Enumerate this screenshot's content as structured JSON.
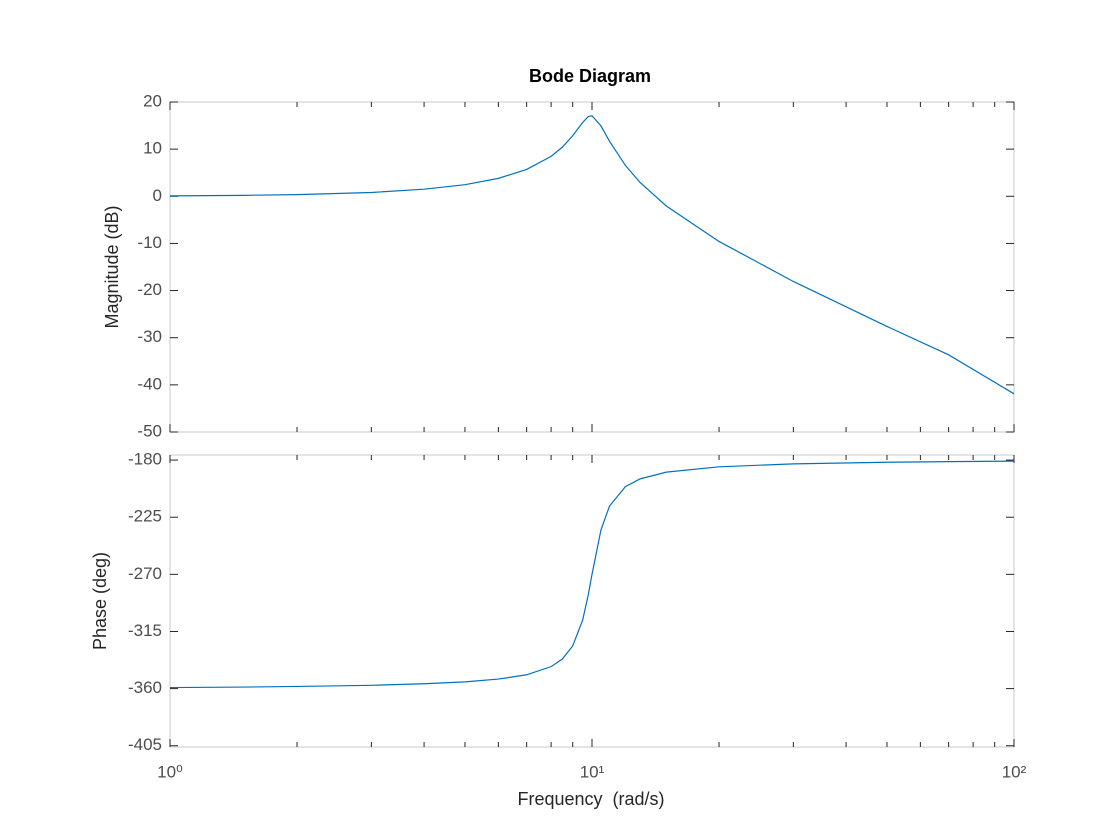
{
  "chart_data": [
    {
      "type": "line",
      "title": "Bode Diagram",
      "ylabel": "Magnitude (dB)",
      "xscale": "log",
      "x": [
        1,
        1.5,
        2,
        3,
        4,
        5,
        6,
        7,
        8,
        8.5,
        9,
        9.5,
        9.8,
        10,
        10.5,
        11,
        12,
        13,
        15,
        20,
        30,
        50,
        70,
        100
      ],
      "series": [
        {
          "name": "Magnitude",
          "color": "#0072bd",
          "values": [
            0.09,
            0.2,
            0.35,
            0.81,
            1.5,
            2.46,
            3.8,
            5.69,
            8.47,
            10.4,
            12.84,
            15.65,
            16.91,
            17.08,
            14.93,
            11.69,
            6.54,
            2.93,
            -2.06,
            -9.58,
            -18.07,
            -27.61,
            -33.63,
            -41.9
          ]
        }
      ],
      "xlim": [
        1,
        100
      ],
      "xticks": [
        1,
        10,
        100
      ],
      "xminorticks": [
        2,
        3,
        4,
        5,
        6,
        7,
        8,
        9,
        20,
        30,
        40,
        50,
        60,
        70,
        80,
        90
      ],
      "ylim": [
        -50,
        20
      ],
      "yticks": [
        -50,
        -40,
        -30,
        -20,
        -10,
        0,
        10,
        20
      ]
    },
    {
      "type": "line",
      "ylabel": "Phase (deg)",
      "xlabel": "Frequency  (rad/s)",
      "xscale": "log",
      "x": [
        1,
        1.5,
        2,
        3,
        4,
        5,
        6,
        7,
        8,
        8.5,
        9,
        9.5,
        9.8,
        10,
        10.5,
        11,
        12,
        13,
        15,
        20,
        30,
        50,
        70,
        100
      ],
      "series": [
        {
          "name": "Phase",
          "color": "#0072bd",
          "values": [
            -359.2,
            -358.8,
            -358.3,
            -357.4,
            -356.2,
            -354.7,
            -352.5,
            -349.1,
            -342.7,
            -336.8,
            -326.4,
            -306.2,
            -286.1,
            -270,
            -235.1,
            -216.3,
            -200.9,
            -194.8,
            -189.5,
            -185.3,
            -183,
            -181.7,
            -181.2,
            -180.8
          ]
        }
      ],
      "xlim": [
        1,
        100
      ],
      "xticks": [
        {
          "value": 1,
          "label": "10⁰"
        },
        {
          "value": 10,
          "label": "10¹"
        },
        {
          "value": 100,
          "label": "10²"
        }
      ],
      "xminorticks": [
        2,
        3,
        4,
        5,
        6,
        7,
        8,
        9,
        20,
        30,
        40,
        50,
        60,
        70,
        80,
        90
      ],
      "ylim": [
        -406,
        -176
      ],
      "yticks": [
        -405,
        -360,
        -315,
        -270,
        -225,
        -180
      ]
    }
  ]
}
